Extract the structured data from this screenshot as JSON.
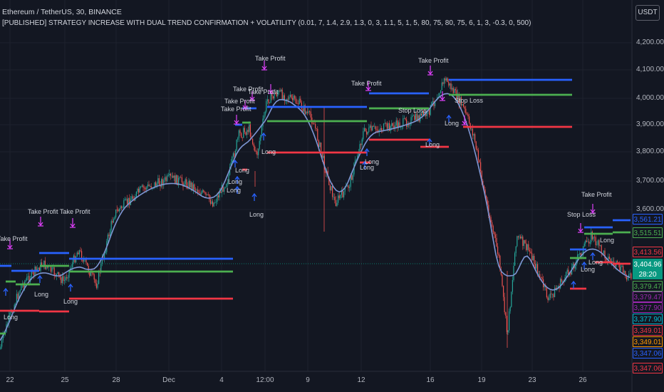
{
  "header": {
    "symbol_line": "Ethereum / TetherUS, 30, BINANCE",
    "strategy_line": "[PUBLISHED] STRATEGY INCREASE WITH DUAL TREND CONFIRMATION + VOLATILITY (0.01, 7, 1.4, 2.9, 1.3, 0, 3, 1.1, 5, 1, 5, 80, 75, 80, 75, 6, 1, 3, -0.3, 0, 500)"
  },
  "currency_button": "USDT",
  "y_axis": {
    "ticks": [
      "4,200.00",
      "4,100.00",
      "4,000.00",
      "3,900.00",
      "3,800.00",
      "3,700.00",
      "3,600.00"
    ]
  },
  "x_axis": {
    "ticks": [
      "22",
      "25",
      "28",
      "Dec",
      "4",
      "12:00",
      "9",
      "12",
      "16",
      "19",
      "23",
      "26"
    ]
  },
  "price_tags": [
    {
      "text": "3,561.21",
      "color": "#2962ff",
      "bg": "#131722"
    },
    {
      "text": "3,515.51",
      "color": "#4caf50",
      "bg": "#131722"
    },
    {
      "text": "3,413.56",
      "color": "#f23645",
      "bg": "#131722"
    },
    {
      "text": "3,404.96",
      "color": "#ffffff",
      "bg": "#089981"
    },
    {
      "text": "28:20",
      "color": "#ffffff",
      "bg": "#089981"
    },
    {
      "text": "3,379.47",
      "color": "#4caf50",
      "bg": "#131722"
    },
    {
      "text": "3,379.47",
      "color": "#9c27b0",
      "bg": "#131722"
    },
    {
      "text": "3,377.90",
      "color": "#9c27b0",
      "bg": "#131722"
    },
    {
      "text": "3,377.90",
      "color": "#00bcd4",
      "bg": "#131722"
    },
    {
      "text": "3,349.01",
      "color": "#f23645",
      "bg": "#131722"
    },
    {
      "text": "3,349.01",
      "color": "#ff9800",
      "bg": "#131722"
    },
    {
      "text": "3,347.06",
      "color": "#2962ff",
      "bg": "#131722"
    },
    {
      "text": "3,347.06",
      "color": "#f23645",
      "bg": "#131722"
    }
  ],
  "annotations": [
    {
      "text": "Take Profit",
      "kind": "tp"
    },
    {
      "text": "Take Profit",
      "kind": "tp"
    },
    {
      "text": "Take Profit",
      "kind": "tp"
    },
    {
      "text": "Take Profit",
      "kind": "tp"
    },
    {
      "text": "Take Profit",
      "kind": "tp"
    },
    {
      "text": "Take Profit",
      "kind": "tp"
    },
    {
      "text": "Take Profit",
      "kind": "tp"
    },
    {
      "text": "Take Profit",
      "kind": "tp"
    },
    {
      "text": "Take Profit",
      "kind": "tp"
    },
    {
      "text": "Take Profit",
      "kind": "tp"
    },
    {
      "text": "Take Profit",
      "kind": "tp"
    },
    {
      "text": "Stop Loss",
      "kind": "sl"
    },
    {
      "text": "Stop Loss",
      "kind": "sl"
    },
    {
      "text": "Stop Loss",
      "kind": "sl"
    },
    {
      "text": "Long",
      "kind": "long"
    },
    {
      "text": "Long",
      "kind": "long"
    },
    {
      "text": "Long",
      "kind": "long"
    },
    {
      "text": "Long",
      "kind": "long"
    },
    {
      "text": "Long",
      "kind": "long"
    },
    {
      "text": "Long",
      "kind": "long"
    },
    {
      "text": "Long",
      "kind": "long"
    },
    {
      "text": "Long",
      "kind": "long"
    },
    {
      "text": "Long",
      "kind": "long"
    },
    {
      "text": "Long",
      "kind": "long"
    },
    {
      "text": "Long",
      "kind": "long"
    },
    {
      "text": "Long",
      "kind": "long"
    },
    {
      "text": "Long",
      "kind": "long"
    },
    {
      "text": "Long",
      "kind": "long"
    },
    {
      "text": "Long",
      "kind": "long"
    }
  ],
  "colors": {
    "background": "#131722",
    "up": "#26a69a",
    "down": "#ef5350",
    "take_profit_line": "#2962ff",
    "entry_line": "#4caf50",
    "stop_loss_line": "#f23645",
    "moving_average": "#7e96d4",
    "take_profit_marker": "#e040fb",
    "long_marker": "#2962ff"
  }
}
